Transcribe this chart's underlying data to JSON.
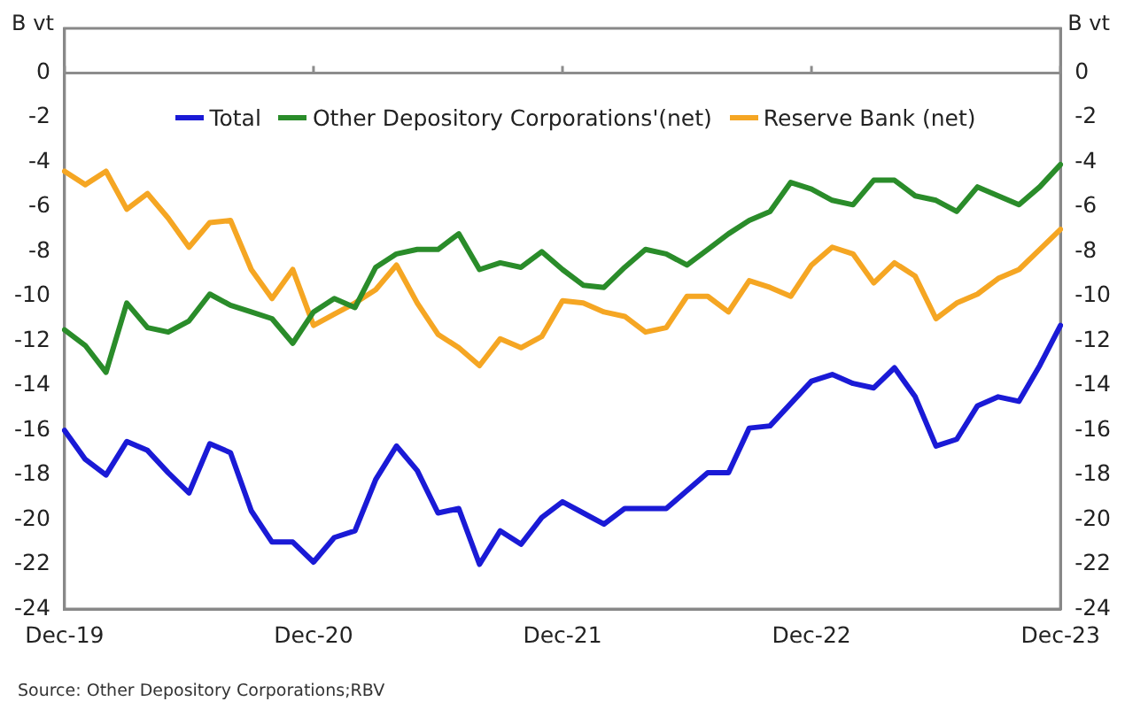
{
  "chart_data": {
    "type": "line",
    "ylabel": "B vt",
    "y2label": "B vt",
    "categories": [
      "Dec-19",
      null,
      null,
      null,
      null,
      null,
      null,
      null,
      null,
      null,
      null,
      null,
      "Dec-20",
      null,
      null,
      null,
      null,
      null,
      null,
      null,
      null,
      null,
      null,
      null,
      "Dec-21",
      null,
      null,
      null,
      null,
      null,
      null,
      null,
      null,
      null,
      null,
      null,
      "Dec-22",
      null,
      null,
      null,
      null,
      null,
      null,
      null,
      null,
      null,
      null,
      null,
      "Dec-23"
    ],
    "series": [
      {
        "name": "Total",
        "color": "#1a1ad6",
        "values": [
          -16.0,
          -17.3,
          -18.0,
          -16.5,
          -16.9,
          -17.9,
          -18.8,
          -16.6,
          -17.0,
          -19.6,
          -21.0,
          -21.0,
          -21.9,
          -20.8,
          -20.5,
          -18.2,
          -16.7,
          -17.8,
          -19.7,
          -19.5,
          -22.0,
          -20.5,
          -21.1,
          -19.9,
          -19.2,
          -19.7,
          -20.2,
          -19.5,
          -19.5,
          -19.5,
          -18.7,
          -17.9,
          -17.9,
          -15.9,
          -15.8,
          -14.8,
          -13.8,
          -13.5,
          -13.9,
          -14.1,
          -13.2,
          -14.5,
          -16.7,
          -16.4,
          -14.9,
          -14.5,
          -14.7,
          -13.1,
          -11.3
        ]
      },
      {
        "name": "Other Depository Corporations'(net)",
        "color": "#2a8c2a",
        "values": [
          -11.5,
          -12.2,
          -13.4,
          -10.3,
          -11.4,
          -11.6,
          -11.1,
          -9.9,
          -10.4,
          -10.7,
          -11.0,
          -12.1,
          -10.7,
          -10.1,
          -10.5,
          -8.7,
          -8.1,
          -7.9,
          -7.9,
          -7.2,
          -8.8,
          -8.5,
          -8.7,
          -8.0,
          -8.8,
          -9.5,
          -9.6,
          -8.7,
          -7.9,
          -8.1,
          -8.6,
          -7.9,
          -7.2,
          -6.6,
          -6.2,
          -4.9,
          -5.2,
          -5.7,
          -5.9,
          -4.8,
          -4.8,
          -5.5,
          -5.7,
          -6.2,
          -5.1,
          -5.5,
          -5.9,
          -5.1,
          -4.1
        ]
      },
      {
        "name": "Reserve Bank (net)",
        "color": "#f5a623",
        "values": [
          -4.4,
          -5.0,
          -4.4,
          -6.1,
          -5.4,
          -6.5,
          -7.8,
          -6.7,
          -6.6,
          -8.8,
          -10.1,
          -8.8,
          -11.3,
          -10.8,
          -10.3,
          -9.7,
          -8.6,
          -10.3,
          -11.7,
          -12.3,
          -13.1,
          -11.9,
          -12.3,
          -11.8,
          -10.2,
          -10.3,
          -10.7,
          -10.9,
          -11.6,
          -11.4,
          -10.0,
          -10.0,
          -10.7,
          -9.3,
          -9.6,
          -10.0,
          -8.6,
          -7.8,
          -8.1,
          -9.4,
          -8.5,
          -9.1,
          -11.0,
          -10.3,
          -9.9,
          -9.2,
          -8.8,
          -7.9,
          -7.0
        ]
      }
    ],
    "ylim": [
      -24,
      2
    ],
    "yticks": [
      -24,
      -22,
      -20,
      -18,
      -16,
      -14,
      -12,
      -10,
      -8,
      -6,
      -4,
      -2,
      0
    ],
    "y2lim": [
      -24,
      2
    ],
    "y2ticks": [
      -24,
      -22,
      -20,
      -18,
      -16,
      -14,
      -12,
      -10,
      -8,
      -6,
      -4,
      -2,
      0
    ],
    "ref_lines": [
      {
        "axis": "y",
        "value": 0,
        "color": "#8c8c8c"
      }
    ],
    "grid": false,
    "legend": "top",
    "marker": "none",
    "line_style": "solid",
    "annotations": [
      "Source: Other Depository Corporations;RBV"
    ]
  }
}
